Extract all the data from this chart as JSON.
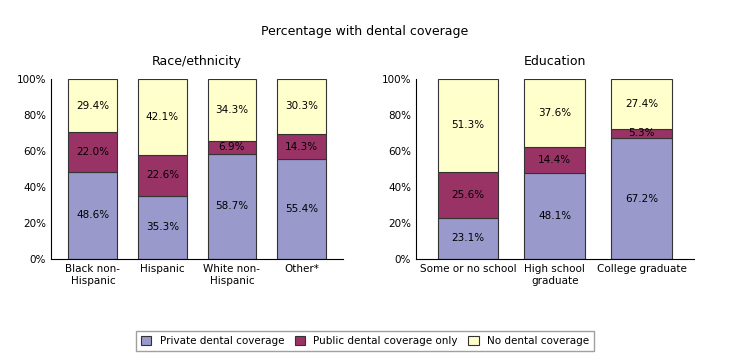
{
  "title": "Percentage with dental coverage",
  "left_subtitle": "Race/ethnicity",
  "right_subtitle": "Education",
  "left_categories": [
    "Black non-\nHispanic",
    "Hispanic",
    "White non-\nHispanic",
    "Other*"
  ],
  "right_categories": [
    "Some or no school",
    "High school\ngraduate",
    "College graduate"
  ],
  "left_data": {
    "private": [
      48.6,
      35.3,
      58.7,
      55.4
    ],
    "public": [
      22.0,
      22.6,
      6.9,
      14.3
    ],
    "none": [
      29.4,
      42.1,
      34.3,
      30.3
    ]
  },
  "right_data": {
    "private": [
      23.1,
      48.1,
      67.2
    ],
    "public": [
      25.6,
      14.4,
      5.3
    ],
    "none": [
      51.3,
      37.6,
      27.4
    ]
  },
  "colors": {
    "private": "#9999CC",
    "public": "#993366",
    "none": "#FFFFCC"
  },
  "legend_labels": [
    "Private dental coverage",
    "Public dental coverage only",
    "No dental coverage"
  ],
  "bar_width": 0.7,
  "ylim": [
    0,
    100
  ],
  "yticks": [
    0,
    20,
    40,
    60,
    80,
    100
  ],
  "ytick_labels": [
    "0%",
    "20%",
    "40%",
    "60%",
    "80%",
    "100%"
  ],
  "font_size_labels": 7.5,
  "font_size_title": 9,
  "font_size_subtitle": 9,
  "edgecolor": "#333333"
}
